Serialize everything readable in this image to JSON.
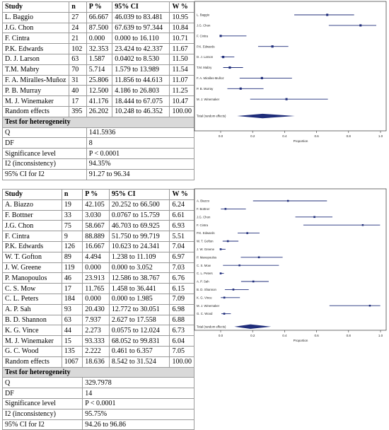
{
  "panels": [
    {
      "table": {
        "headers": [
          "Study",
          "n",
          "P %",
          "95% CI",
          "W %"
        ],
        "rows": [
          [
            "L. Baggio",
            "27",
            "66.667",
            "46.039 to 83.481",
            "10.95"
          ],
          [
            "J.G. Chon",
            "24",
            "87.500",
            "67.639 to 97.344",
            "10.84"
          ],
          [
            "F. Cintra",
            "21",
            "0.000",
            "0.000 to 16.110",
            "10.71"
          ],
          [
            "P.K. Edwards",
            "102",
            "32.353",
            "23.424 to 42.337",
            "11.67"
          ],
          [
            "D. J. Larson",
            "63",
            "1.587",
            "0.0402 to 8.530",
            "11.50"
          ],
          [
            "T.M. Mabry",
            "70",
            "5.714",
            "1.579 to 13.989",
            "11.54"
          ],
          [
            "F. A. Miralles-Muñoz",
            "31",
            "25.806",
            "11.856 to 44.613",
            "11.07"
          ],
          [
            "P. B. Murray",
            "40",
            "12.500",
            "4.186 to 26.803",
            "11.25"
          ],
          [
            "M. J. Winemaker",
            "17",
            "41.176",
            "18.444 to 67.075",
            "10.47"
          ],
          [
            "Random effects",
            "395",
            "26.202",
            "10.248 to 46.352",
            "100.00"
          ]
        ],
        "heterogeneity_title": "Test for heterogeneity",
        "heterogeneity": [
          [
            "Q",
            "141.5936"
          ],
          [
            "DF",
            "8"
          ],
          [
            "Significance level",
            "P < 0.0001"
          ],
          [
            "I2 (inconsistency)",
            "94.35%"
          ],
          [
            "95% CI for I2",
            "91.27 to 96.34"
          ]
        ]
      },
      "forest": {
        "labels": [
          "L. Baggio",
          "J.G. Chon",
          "F. Cintra",
          "P.K. Edwards",
          "D. J. Larson",
          "T.M. Mabry",
          "F. A. Miralles-Muñoz",
          "P. B. Murray",
          "M. J. Winemaker"
        ],
        "total_label": "Total (random effects)",
        "xlabel": "Proportion",
        "ticks": [
          "0.0",
          "0.2",
          "0.4",
          "0.6",
          "0.8",
          "1.0"
        ]
      }
    },
    {
      "table": {
        "headers": [
          "Study",
          "n",
          "P %",
          "95% CI",
          "W %"
        ],
        "rows": [
          [
            "A. Biazzo",
            "19",
            "42.105",
            "20.252 to 66.500",
            "6.24"
          ],
          [
            "F. Bottner",
            "33",
            "3.030",
            "0.0767 to 15.759",
            "6.61"
          ],
          [
            "J.G. Chon",
            "75",
            "58.667",
            "46.703 to 69.925",
            "6.93"
          ],
          [
            "F. Cintra",
            "9",
            "88.889",
            "51.750 to 99.719",
            "5.51"
          ],
          [
            "P.K. Edwards",
            "126",
            "16.667",
            "10.623 to 24.341",
            "7.04"
          ],
          [
            "W. T. Gofton",
            "89",
            "4.494",
            "1.238 to 11.109",
            "6.97"
          ],
          [
            "J. W. Greene",
            "119",
            "0.000",
            "0.000 to 3.052",
            "7.03"
          ],
          [
            "P. Manopoulos",
            "46",
            "23.913",
            "12.586 to 38.767",
            "6.76"
          ],
          [
            "C. S. Mow",
            "17",
            "11.765",
            "1.458 to 36.441",
            "6.15"
          ],
          [
            "C. L. Peters",
            "184",
            "0.000",
            "0.000 to 1.985",
            "7.09"
          ],
          [
            "A. P. Sah",
            "93",
            "20.430",
            "12.772 to 30.051",
            "6.98"
          ],
          [
            "B. D. Shannon",
            "63",
            "7.937",
            "2.627 to 17.558",
            "6.88"
          ],
          [
            "K. G. Vince",
            "44",
            "2.273",
            "0.0575 to 12.024",
            "6.73"
          ],
          [
            "M. J. Winemaker",
            "15",
            "93.333",
            "68.052 to 99.831",
            "6.04"
          ],
          [
            "G. C. Wood",
            "135",
            "2.222",
            "0.461 to 6.357",
            "7.05"
          ],
          [
            "Random effects",
            "1067",
            "18.636",
            "8.542 to 31.524",
            "100.00"
          ]
        ],
        "heterogeneity_title": "Test for heterogeneity",
        "heterogeneity": [
          [
            "Q",
            "329.7978"
          ],
          [
            "DF",
            "14"
          ],
          [
            "Significance level",
            "P < 0.0001"
          ],
          [
            "I2 (inconsistency)",
            "95.75%"
          ],
          [
            "95% CI for I2",
            "94.26 to 96.86"
          ]
        ]
      },
      "forest": {
        "labels": [
          "A. Biazzo",
          "F. Bottner",
          "J.G. Chon",
          "F. Cintra",
          "P.K. Edwards",
          "W. T. Gofton",
          "J. W. Greene",
          "P. Manopoulos",
          "C. S. Mow",
          "C. L. Peters",
          "A. P. Sah",
          "B. D. Shannon",
          "K. G. Vince",
          "M. J. Winemaker",
          "G. C. Wood"
        ],
        "total_label": "Total (random effects)",
        "xlabel": "Proportion",
        "ticks": [
          "0.0",
          "0.2",
          "0.4",
          "0.6",
          "0.8",
          "1.0"
        ]
      }
    }
  ],
  "colors": {
    "marker": "#1f2d7a",
    "axis": "#333333",
    "grid_border": "#9a9a9a",
    "section_bg": "#d9d9d9"
  },
  "chart_data": [
    {
      "type": "forest",
      "xlabel": "Proportion",
      "xlim": [
        0,
        1
      ],
      "studies": [
        "L. Baggio",
        "J.G. Chon",
        "F. Cintra",
        "P.K. Edwards",
        "D. J. Larson",
        "T.M. Mabry",
        "F. A. Miralles-Muñoz",
        "P. B. Murray",
        "M. J. Winemaker"
      ],
      "estimate": [
        0.66667,
        0.875,
        0.0,
        0.32353,
        0.01587,
        0.05714,
        0.25806,
        0.125,
        0.41176
      ],
      "ci_low": [
        0.46039,
        0.67639,
        0.0,
        0.23424,
        0.000402,
        0.01579,
        0.11856,
        0.04186,
        0.18444
      ],
      "ci_high": [
        0.83481,
        0.97344,
        0.1611,
        0.42337,
        0.0853,
        0.13989,
        0.44613,
        0.26803,
        0.67075
      ],
      "weight": [
        10.95,
        10.84,
        10.71,
        11.67,
        11.5,
        11.54,
        11.07,
        11.25,
        10.47
      ],
      "pooled": {
        "label": "Total (random effects)",
        "estimate": 0.26202,
        "ci_low": 0.10248,
        "ci_high": 0.46352
      }
    },
    {
      "type": "forest",
      "xlabel": "Proportion",
      "xlim": [
        0,
        1
      ],
      "studies": [
        "A. Biazzo",
        "F. Bottner",
        "J.G. Chon",
        "F. Cintra",
        "P.K. Edwards",
        "W. T. Gofton",
        "J. W. Greene",
        "P. Manopoulos",
        "C. S. Mow",
        "C. L. Peters",
        "A. P. Sah",
        "B. D. Shannon",
        "K. G. Vince",
        "M. J. Winemaker",
        "G. C. Wood"
      ],
      "estimate": [
        0.42105,
        0.0303,
        0.58667,
        0.88889,
        0.16667,
        0.04494,
        0.0,
        0.23913,
        0.11765,
        0.0,
        0.2043,
        0.07937,
        0.02273,
        0.93333,
        0.02222
      ],
      "ci_low": [
        0.20252,
        0.000767,
        0.46703,
        0.5175,
        0.10623,
        0.01238,
        0.0,
        0.12586,
        0.01458,
        0.0,
        0.12772,
        0.02627,
        0.000575,
        0.68052,
        0.00461
      ],
      "ci_high": [
        0.665,
        0.15759,
        0.69925,
        0.99719,
        0.24341,
        0.11109,
        0.03052,
        0.38767,
        0.36441,
        0.01985,
        0.30051,
        0.17558,
        0.12024,
        0.99831,
        0.06357
      ],
      "weight": [
        6.24,
        6.61,
        6.93,
        5.51,
        7.04,
        6.97,
        7.03,
        6.76,
        6.15,
        7.09,
        6.98,
        6.88,
        6.73,
        6.04,
        7.05
      ],
      "pooled": {
        "label": "Total (random effects)",
        "estimate": 0.18636,
        "ci_low": 0.08542,
        "ci_high": 0.31524
      }
    }
  ]
}
